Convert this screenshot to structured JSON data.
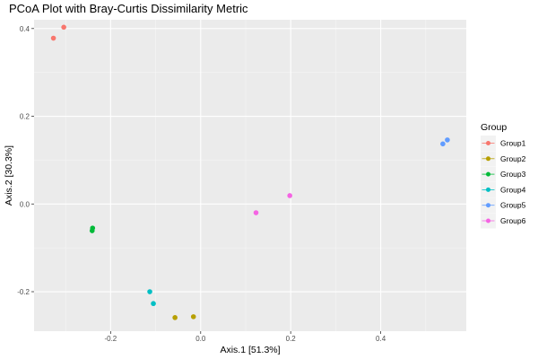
{
  "chart_data": {
    "type": "scatter",
    "title": "PCoA Plot with Bray-Curtis Dissimilarity Metric",
    "xlabel": "Axis.1   [51.3%]",
    "ylabel": "Axis.2   [30.3%]",
    "xlim": [
      -0.37,
      0.59
    ],
    "ylim": [
      -0.29,
      0.42
    ],
    "x_ticks": [
      -0.2,
      0.0,
      0.2,
      0.4
    ],
    "x_tick_labels": [
      "-0.2",
      "0.0",
      "0.2",
      "0.4"
    ],
    "y_ticks": [
      -0.2,
      0.0,
      0.2,
      0.4
    ],
    "y_tick_labels": [
      "-0.2",
      "0.0",
      "0.2",
      "0.4"
    ],
    "grid": true,
    "legend": {
      "title": "Group",
      "position": "right"
    },
    "series": [
      {
        "name": "Group1",
        "color": "#F8766D",
        "points": [
          [
            -0.327,
            0.378
          ],
          [
            -0.304,
            0.403
          ]
        ]
      },
      {
        "name": "Group2",
        "color": "#B79F00",
        "points": [
          [
            -0.057,
            -0.259
          ],
          [
            -0.016,
            -0.257
          ]
        ]
      },
      {
        "name": "Group3",
        "color": "#00BA38",
        "points": [
          [
            -0.24,
            -0.055
          ],
          [
            -0.241,
            -0.061
          ]
        ]
      },
      {
        "name": "Group4",
        "color": "#00BFC4",
        "points": [
          [
            -0.113,
            -0.2
          ],
          [
            -0.105,
            -0.227
          ]
        ]
      },
      {
        "name": "Group5",
        "color": "#619CFF",
        "points": [
          [
            0.538,
            0.137
          ],
          [
            0.548,
            0.146
          ]
        ]
      },
      {
        "name": "Group6",
        "color": "#F564E3",
        "points": [
          [
            0.123,
            -0.02
          ],
          [
            0.198,
            0.019
          ]
        ]
      }
    ]
  }
}
